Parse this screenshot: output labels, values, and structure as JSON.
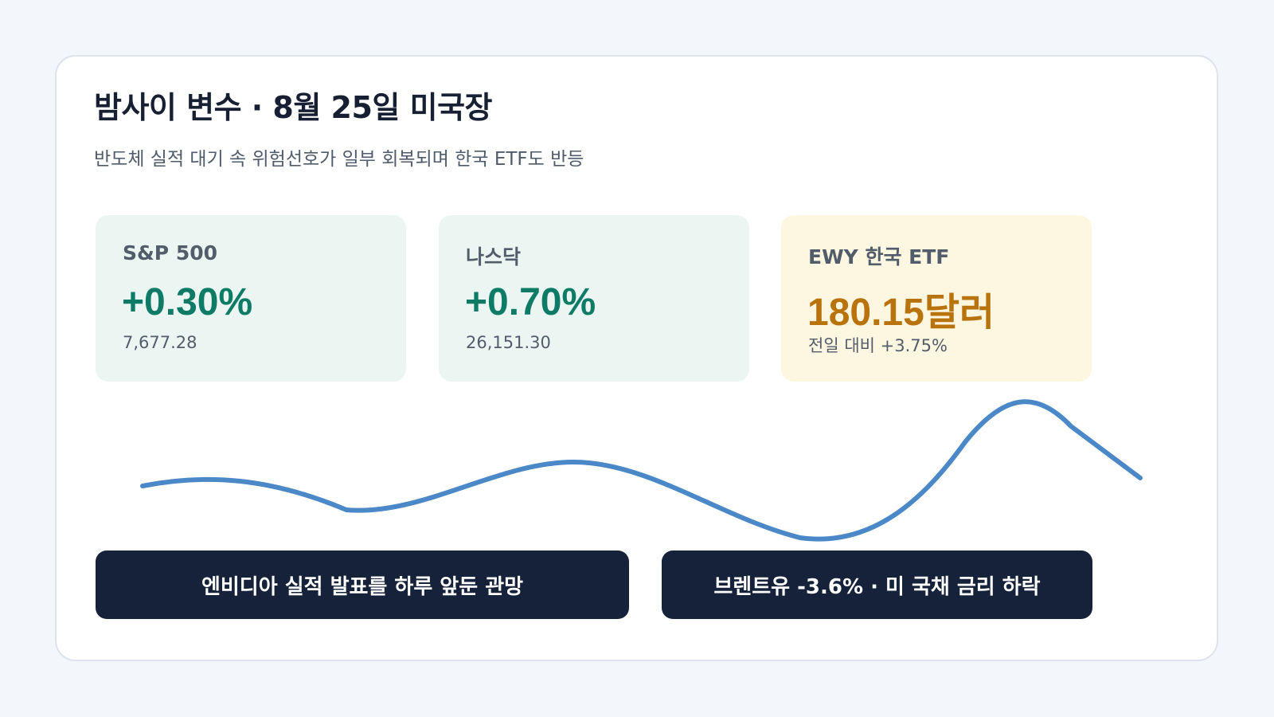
{
  "header": {
    "title": "밤사이 변수 · 8월 25일 미국장",
    "subtitle": "반도체 실적 대기 속 위험선호가 일부 회복되며 한국 ETF도 반등"
  },
  "stats": [
    {
      "label": "S&P 500",
      "value": "+0.30%",
      "sub": "7,677.28",
      "accent": "#0d7b66"
    },
    {
      "label": "나스닥",
      "value": "+0.70%",
      "sub": "26,151.30",
      "accent": "#0d7b66"
    },
    {
      "label": "EWY 한국 ETF",
      "value": "180.15달러",
      "sub": "전일 대비 +3.75%",
      "accent": "#b8730d"
    }
  ],
  "trend_line": {
    "color": "#4a88c7"
  },
  "tags": [
    {
      "label": "엔비디아 실적 발표를 하루 앞둔 관망"
    },
    {
      "label": "브렌트유 -3.6% · 미 국채 금리 하락"
    }
  ]
}
